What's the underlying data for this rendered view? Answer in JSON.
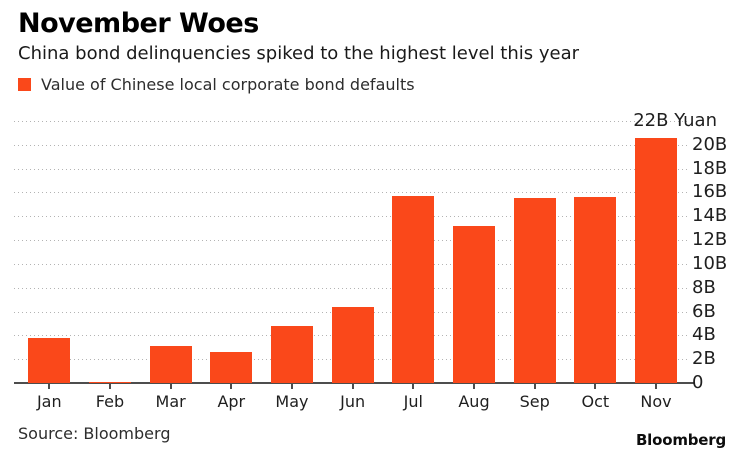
{
  "header": {
    "title": "November Woes",
    "subtitle": "China bond delinquencies spiked to the highest level this year"
  },
  "legend": {
    "label": "Value of Chinese local corporate bond defaults"
  },
  "chart_data": {
    "type": "bar",
    "title": "November Woes",
    "subtitle": "China bond delinquencies spiked to the highest level this year",
    "legend_entries": [
      "Value of Chinese local corporate bond defaults"
    ],
    "categories": [
      "Jan",
      "Feb",
      "Mar",
      "Apr",
      "May",
      "Jun",
      "Jul",
      "Aug",
      "Sep",
      "Oct",
      "Nov"
    ],
    "values": [
      3.8,
      0.1,
      3.1,
      2.6,
      4.8,
      6.4,
      15.7,
      13.2,
      15.5,
      15.6,
      20.6
    ],
    "unit": "B Yuan",
    "ylim": [
      0,
      22
    ],
    "ytick_interval": 2,
    "ytick_labels": [
      "0",
      "2B",
      "4B",
      "6B",
      "8B",
      "10B",
      "12B",
      "14B",
      "16B",
      "18B",
      "20B",
      "22B Yuan"
    ],
    "axis_label_side": "right",
    "grid": "dotted-horizontal",
    "bar_color": "#FA481A"
  },
  "colors": {
    "bar": "#FA481A",
    "grid": "#b3b3b3",
    "axis": "#4d4d4d"
  },
  "footer": {
    "source": "Source: Bloomberg",
    "logo": "Bloomberg"
  }
}
